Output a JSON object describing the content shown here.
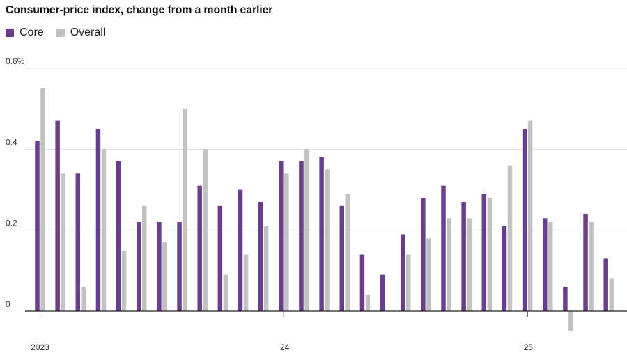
{
  "chart_data": {
    "type": "bar",
    "title": "Consumer-price index, change from a month earlier",
    "series": [
      {
        "name": "Core",
        "color": "#6b3d8f",
        "values": [
          0.42,
          0.47,
          0.34,
          0.45,
          0.37,
          0.22,
          0.22,
          0.22,
          0.31,
          0.26,
          0.3,
          0.27,
          0.37,
          0.37,
          0.38,
          0.26,
          0.14,
          0.09,
          0.19,
          0.28,
          0.31,
          0.27,
          0.29,
          0.21,
          0.45,
          0.23,
          0.06,
          0.24,
          0.13
        ]
      },
      {
        "name": "Overall",
        "color": "#c2c2c2",
        "values": [
          0.55,
          0.34,
          0.06,
          0.4,
          0.15,
          0.26,
          0.17,
          0.5,
          0.4,
          0.09,
          0.14,
          0.21,
          0.34,
          0.4,
          0.35,
          0.29,
          0.04,
          0.0,
          0.14,
          0.18,
          0.23,
          0.23,
          0.28,
          0.36,
          0.47,
          0.22,
          -0.05,
          0.22,
          0.08
        ]
      }
    ],
    "months": [
      "2023-01",
      "2023-02",
      "2023-03",
      "2023-04",
      "2023-05",
      "2023-06",
      "2023-07",
      "2023-08",
      "2023-09",
      "2023-10",
      "2023-11",
      "2023-12",
      "2024-01",
      "2024-02",
      "2024-03",
      "2024-04",
      "2024-05",
      "2024-06",
      "2024-07",
      "2024-08",
      "2024-09",
      "2024-10",
      "2024-11",
      "2024-12",
      "2025-01",
      "2025-02",
      "2025-03",
      "2025-04",
      "2025-05"
    ],
    "y_ticks": [
      {
        "value": 0.6,
        "label": "0.6%"
      },
      {
        "value": 0.4,
        "label": "0.4"
      },
      {
        "value": 0.2,
        "label": "0.2"
      },
      {
        "value": 0,
        "label": "0"
      }
    ],
    "x_ticks": [
      {
        "index": 0,
        "label": "2023"
      },
      {
        "index": 12,
        "label": "’24"
      },
      {
        "index": 24,
        "label": "’25"
      }
    ],
    "ylim": [
      -0.05,
      0.6
    ],
    "xlabel": "",
    "ylabel": ""
  }
}
